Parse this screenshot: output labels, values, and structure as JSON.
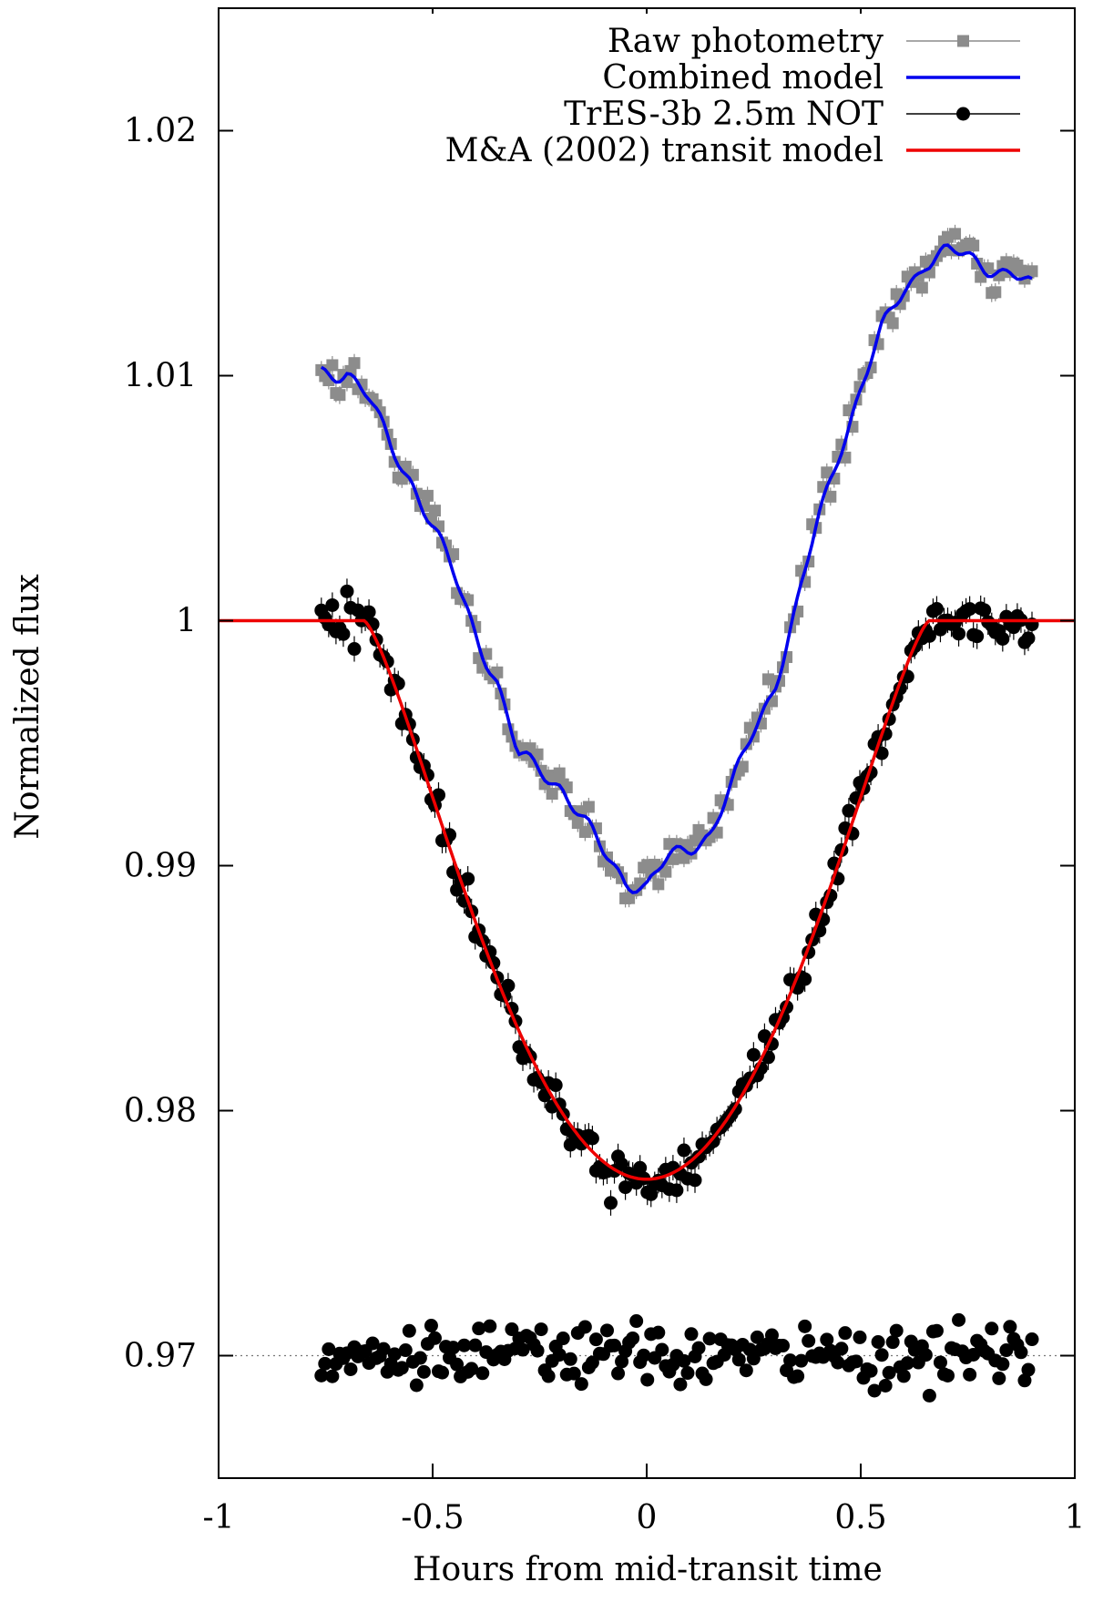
{
  "chart_data": {
    "type": "scatter",
    "xlabel": "Hours from mid-transit time",
    "ylabel": "Normalized flux",
    "xlim": [
      -1,
      1
    ],
    "ylim": [
      0.965,
      1.025
    ],
    "xticks": [
      -1,
      -0.5,
      0,
      0.5,
      1
    ],
    "xtick_labels": [
      "-1",
      "-0.5",
      "0",
      "0.5",
      "1"
    ],
    "yticks": [
      0.97,
      0.98,
      0.99,
      1,
      1.01,
      1.02
    ],
    "ytick_labels": [
      "0.97",
      "0.98",
      "0.99",
      "1",
      "1.01",
      "1.02"
    ],
    "grid": false,
    "legend_position": "top-right",
    "reference_line": {
      "y": 0.97,
      "style": "dotted"
    },
    "colors": {
      "raw": "#8c8c8c",
      "combined": "#0000ee",
      "data": "#000000",
      "transit_model": "#ee0000"
    },
    "series": [
      {
        "name": "Raw photometry",
        "key": "raw",
        "marker": "square",
        "x_range": [
          -0.76,
          0.9
        ],
        "points": 195,
        "y_knots": [
          [
            -0.76,
            1.0102
          ],
          [
            -0.7,
            1.0102
          ],
          [
            -0.65,
            1.009
          ],
          [
            -0.6,
            1.0072
          ],
          [
            -0.55,
            1.0058
          ],
          [
            -0.5,
            1.0038
          ],
          [
            -0.45,
            1.0018
          ],
          [
            -0.4,
            0.9996
          ],
          [
            -0.35,
            0.9975
          ],
          [
            -0.3,
            0.9944
          ],
          [
            -0.25,
            0.994
          ],
          [
            -0.2,
            0.9933
          ],
          [
            -0.15,
            0.9918
          ],
          [
            -0.1,
            0.9905
          ],
          [
            -0.05,
            0.9895
          ],
          [
            0.0,
            0.9891
          ],
          [
            0.05,
            0.9902
          ],
          [
            0.1,
            0.9908
          ],
          [
            0.15,
            0.9914
          ],
          [
            0.2,
            0.9932
          ],
          [
            0.25,
            0.9955
          ],
          [
            0.3,
            0.9975
          ],
          [
            0.35,
            1.0005
          ],
          [
            0.4,
            1.004
          ],
          [
            0.45,
            1.007
          ],
          [
            0.5,
            1.0095
          ],
          [
            0.55,
            1.0118
          ],
          [
            0.6,
            1.0135
          ],
          [
            0.65,
            1.0147
          ],
          [
            0.7,
            1.015
          ],
          [
            0.75,
            1.0148
          ],
          [
            0.8,
            1.0145
          ],
          [
            0.85,
            1.0142
          ],
          [
            0.9,
            1.0135
          ]
        ]
      },
      {
        "name": "Combined model",
        "key": "combined",
        "marker": "line"
      },
      {
        "name": "TrES-3b 2.5m NOT",
        "key": "data",
        "marker": "circle",
        "x_range": [
          -0.76,
          0.9
        ],
        "points": 195
      },
      {
        "name": "M&A (2002) transit model",
        "key": "transit_model",
        "marker": "line",
        "x_range": [
          -1,
          1
        ],
        "depth": 0.0228,
        "ingress_start": -0.66,
        "full_transit_half_width": 0.66
      },
      {
        "name": "",
        "key": "residuals",
        "marker": "circle",
        "offset": 0.97,
        "x_range": [
          -0.76,
          0.9
        ],
        "points": 195,
        "scatter": 0.0006
      }
    ]
  }
}
